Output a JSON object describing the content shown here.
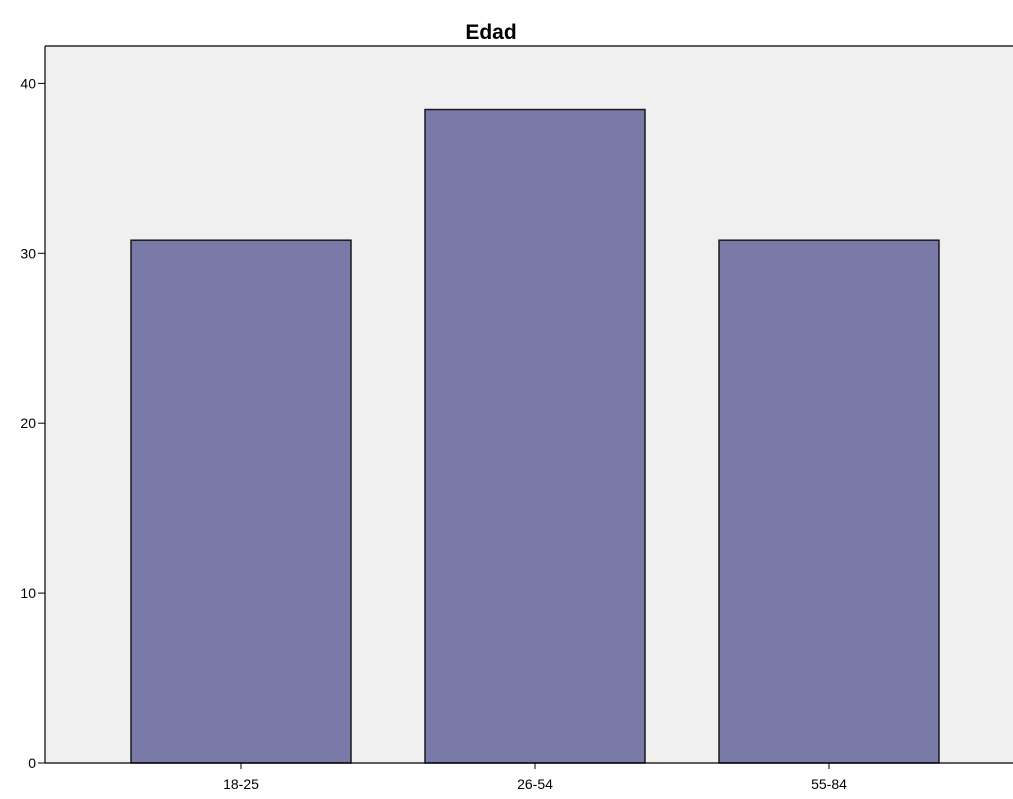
{
  "chart_data": {
    "type": "bar",
    "title": "Edad",
    "xlabel": "",
    "ylabel": "",
    "categories": [
      "18-25",
      "26-54",
      "55-84"
    ],
    "values": [
      30.77,
      38.46,
      30.77
    ],
    "ylim": [
      0,
      42.2
    ],
    "yticks": [
      0,
      10,
      20,
      30,
      40
    ],
    "ytick_labels": [
      "0",
      "10",
      "20",
      "30",
      "40"
    ],
    "grid": false,
    "legend": "none",
    "colors": {
      "plot_background": "#f0f0f0",
      "bar_fill": "#7979a8",
      "bar_stroke": "#1a1a1a",
      "axis": "#000000"
    }
  }
}
